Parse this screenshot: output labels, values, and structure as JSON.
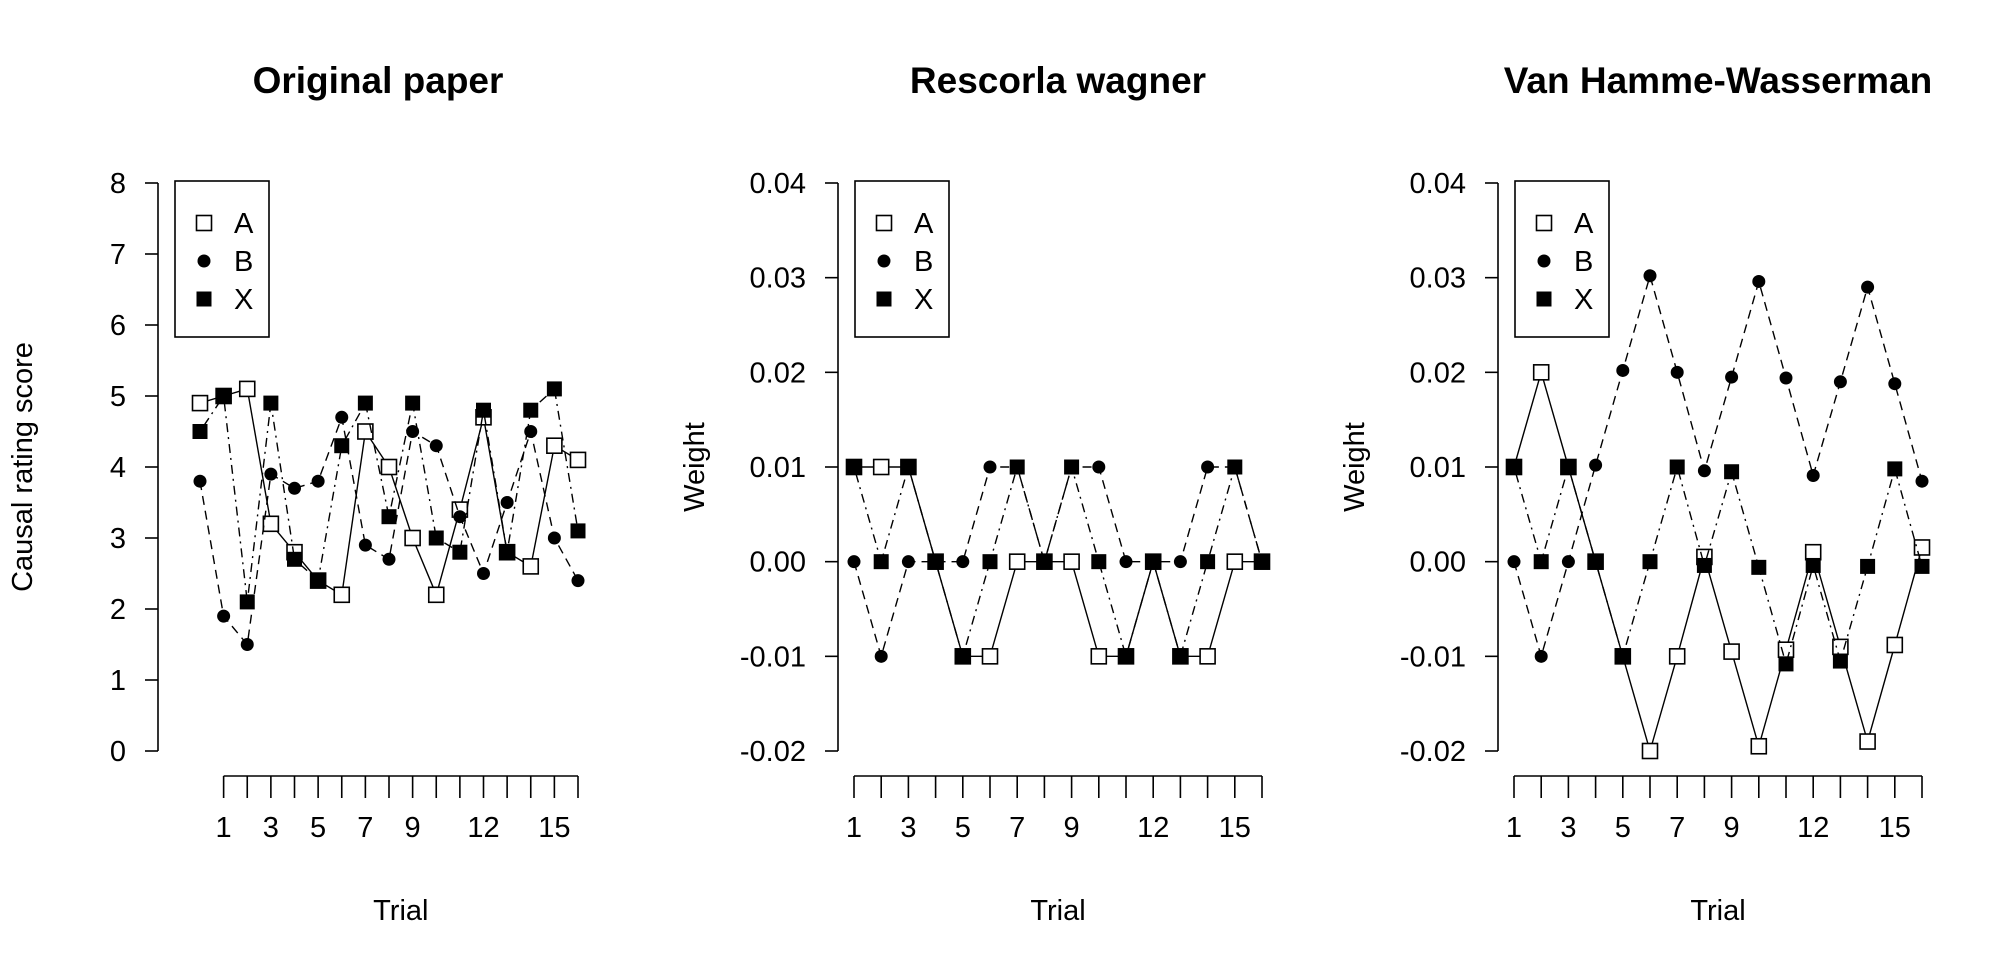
{
  "chart_data": [
    {
      "type": "line",
      "title": "Original paper",
      "xlabel": "Trial",
      "ylabel": "Causal rating score",
      "ylim": [
        0,
        8
      ],
      "yticks": [
        "0",
        "1",
        "2",
        "3",
        "4",
        "5",
        "6",
        "7",
        "8"
      ],
      "xticks": [
        "1",
        "3",
        "5",
        "7",
        "9",
        "12",
        "15"
      ],
      "legend_position": "top-left",
      "series": [
        {
          "name": "A",
          "marker": "open-square",
          "line": "solid",
          "x": [
            0,
            1,
            2,
            3,
            4,
            5,
            6,
            7,
            8,
            9,
            10,
            11,
            12,
            13,
            14,
            15,
            16
          ],
          "y": [
            4.9,
            5.0,
            5.1,
            3.2,
            2.8,
            2.4,
            2.2,
            4.5,
            4.0,
            3.0,
            2.2,
            3.4,
            4.7,
            2.8,
            2.6,
            4.3,
            4.1
          ]
        },
        {
          "name": "B",
          "marker": "filled-circle",
          "line": "dashed",
          "x": [
            0,
            1,
            2,
            3,
            4,
            5,
            6,
            7,
            8,
            9,
            10,
            11,
            12,
            13,
            14,
            15,
            16
          ],
          "y": [
            3.8,
            1.9,
            1.5,
            3.9,
            3.7,
            3.8,
            4.7,
            2.9,
            2.7,
            4.5,
            4.3,
            3.3,
            2.5,
            3.5,
            4.5,
            3.0,
            2.4
          ]
        },
        {
          "name": "X",
          "marker": "filled-square",
          "line": "dotdash",
          "x": [
            0,
            1,
            2,
            3,
            4,
            5,
            6,
            7,
            8,
            9,
            10,
            11,
            12,
            13,
            14,
            15,
            16
          ],
          "y": [
            4.5,
            5.0,
            2.1,
            4.9,
            2.7,
            2.4,
            4.3,
            4.9,
            3.3,
            4.9,
            3.0,
            2.8,
            4.8,
            2.8,
            4.8,
            5.1,
            3.1
          ]
        }
      ]
    },
    {
      "type": "line",
      "title": "Rescorla wagner",
      "xlabel": "Trial",
      "ylabel": "Weight",
      "ylim": [
        -0.02,
        0.04
      ],
      "yticks": [
        "-0.02",
        "-0.01",
        "0.00",
        "0.01",
        "0.02",
        "0.03",
        "0.04"
      ],
      "xticks": [
        "1",
        "3",
        "5",
        "7",
        "9",
        "12",
        "15"
      ],
      "legend_position": "top-left",
      "series": [
        {
          "name": "A",
          "marker": "open-square",
          "line": "solid",
          "x": [
            1,
            2,
            3,
            4,
            5,
            6,
            7,
            8,
            9,
            10,
            11,
            12,
            13,
            14,
            15,
            16
          ],
          "y": [
            0.01,
            0.01,
            0.01,
            0.0,
            -0.01,
            -0.01,
            0.0,
            0.0,
            0.0,
            -0.01,
            -0.01,
            0.0,
            -0.01,
            -0.01,
            0.0,
            0.0
          ]
        },
        {
          "name": "B",
          "marker": "filled-circle",
          "line": "dashed",
          "x": [
            1,
            2,
            3,
            4,
            5,
            6,
            7,
            8,
            9,
            10,
            11,
            12,
            13,
            14,
            15,
            16
          ],
          "y": [
            0.0,
            -0.01,
            0.0,
            0.0,
            0.0,
            0.01,
            0.01,
            0.0,
            0.01,
            0.01,
            0.0,
            0.0,
            0.0,
            0.01,
            0.01,
            0.0
          ]
        },
        {
          "name": "X",
          "marker": "filled-square",
          "line": "dotdash",
          "x": [
            1,
            2,
            3,
            4,
            5,
            6,
            7,
            8,
            9,
            10,
            11,
            12,
            13,
            14,
            15,
            16
          ],
          "y": [
            0.01,
            0.0,
            0.01,
            0.0,
            -0.01,
            0.0,
            0.01,
            0.0,
            0.01,
            0.0,
            -0.01,
            0.0,
            -0.01,
            0.0,
            0.01,
            0.0
          ]
        }
      ]
    },
    {
      "type": "line",
      "title": "Van Hamme-Wasserman",
      "xlabel": "Trial",
      "ylabel": "Weight",
      "ylim": [
        -0.02,
        0.04
      ],
      "yticks": [
        "-0.02",
        "-0.01",
        "0.00",
        "0.01",
        "0.02",
        "0.03",
        "0.04"
      ],
      "xticks": [
        "1",
        "3",
        "5",
        "7",
        "9",
        "12",
        "15"
      ],
      "legend_position": "top-left",
      "series": [
        {
          "name": "A",
          "marker": "open-square",
          "line": "solid",
          "x": [
            1,
            2,
            3,
            4,
            5,
            6,
            7,
            8,
            9,
            10,
            11,
            12,
            13,
            14,
            15,
            16
          ],
          "y": [
            0.01,
            0.02,
            0.01,
            0.0,
            -0.01,
            -0.02,
            -0.01,
            0.0005,
            -0.0095,
            -0.0195,
            -0.0093,
            0.001,
            -0.009,
            -0.019,
            -0.0088,
            0.0015
          ]
        },
        {
          "name": "B",
          "marker": "filled-circle",
          "line": "dashed",
          "x": [
            1,
            2,
            3,
            4,
            5,
            6,
            7,
            8,
            9,
            10,
            11,
            12,
            13,
            14,
            15,
            16
          ],
          "y": [
            0.0,
            -0.01,
            0.0,
            0.0102,
            0.0202,
            0.0302,
            0.02,
            0.0096,
            0.0195,
            0.0296,
            0.0194,
            0.0091,
            0.019,
            0.029,
            0.0188,
            0.0085
          ]
        },
        {
          "name": "X",
          "marker": "filled-square",
          "line": "dotdash",
          "x": [
            1,
            2,
            3,
            4,
            5,
            6,
            7,
            8,
            9,
            10,
            11,
            12,
            13,
            14,
            15,
            16
          ],
          "y": [
            0.01,
            0.0,
            0.01,
            0.0,
            -0.01,
            0.0,
            0.01,
            -0.0004,
            0.0095,
            -0.0006,
            -0.0108,
            -0.0004,
            -0.0105,
            -0.0005,
            0.0098,
            -0.0005
          ]
        }
      ]
    }
  ]
}
